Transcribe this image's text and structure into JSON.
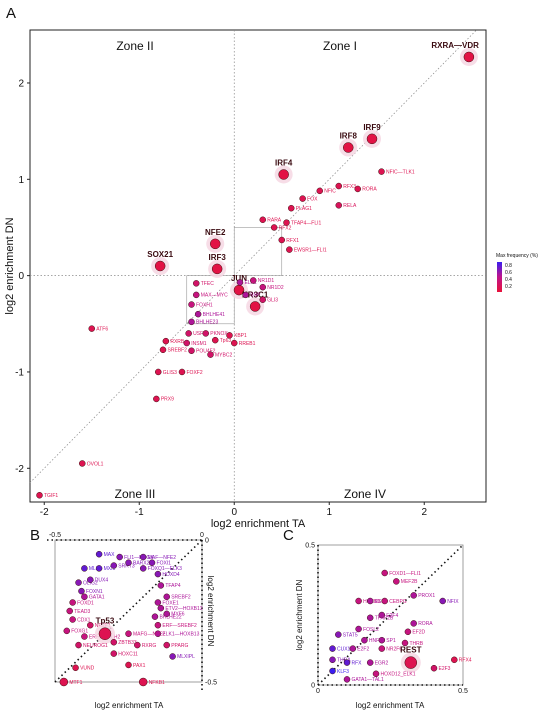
{
  "chart_data": [
    {
      "panel": "A",
      "type": "scatter",
      "xlabel": "log2 enrichment TA",
      "ylabel": "log2 enrichment DN",
      "xlim": [
        -2.15,
        2.65
      ],
      "ylim": [
        -2.35,
        2.55
      ],
      "xticks": [
        "-2",
        "-1",
        "0",
        "1",
        "2"
      ],
      "yticks": [
        "2",
        "1",
        "0",
        "-1",
        "-2"
      ],
      "zones": [
        "Zone I",
        "Zone II",
        "Zone III",
        "Zone IV"
      ],
      "legend": {
        "title": "Max frequency (%)",
        "ticks": [
          "0.8",
          "0.6",
          "0.4",
          "0.2"
        ],
        "low_color": "#e8123a",
        "mid_color": "#c0148a",
        "high_color": "#3a1ef0",
        "placement": "right"
      },
      "points": [
        {
          "label": "RXRA—VDR",
          "x": 2.47,
          "y": 2.27,
          "f": 0.15,
          "s": 5,
          "big": true
        },
        {
          "label": "IRF9",
          "x": 1.45,
          "y": 1.42,
          "f": 0.15,
          "s": 5,
          "big": true
        },
        {
          "label": "IRF8",
          "x": 1.2,
          "y": 1.33,
          "f": 0.15,
          "s": 5,
          "big": true
        },
        {
          "label": "NFIC—TLK1",
          "x": 1.55,
          "y": 1.08,
          "f": 0.2,
          "s": 3
        },
        {
          "label": "IRF4",
          "x": 0.52,
          "y": 1.05,
          "f": 0.15,
          "s": 5,
          "big": true
        },
        {
          "label": "RFX3",
          "x": 1.1,
          "y": 0.93,
          "f": 0.2,
          "s": 3
        },
        {
          "label": "RORA",
          "x": 1.3,
          "y": 0.9,
          "f": 0.2,
          "s": 3
        },
        {
          "label": "NFIC",
          "x": 0.9,
          "y": 0.88,
          "f": 0.2,
          "s": 3
        },
        {
          "label": "FOX",
          "x": 0.72,
          "y": 0.8,
          "f": 0.2,
          "s": 3
        },
        {
          "label": "RELA",
          "x": 1.1,
          "y": 0.73,
          "f": 0.25,
          "s": 3
        },
        {
          "label": "PLAG1",
          "x": 0.6,
          "y": 0.7,
          "f": 0.2,
          "s": 3
        },
        {
          "label": "TFAP4—FLI1",
          "x": 0.55,
          "y": 0.55,
          "f": 0.2,
          "s": 3
        },
        {
          "label": "RARA",
          "x": 0.3,
          "y": 0.58,
          "f": 0.2,
          "s": 3
        },
        {
          "label": "RFX2",
          "x": 0.42,
          "y": 0.5,
          "f": 0.2,
          "s": 3
        },
        {
          "label": "RFX1",
          "x": 0.5,
          "y": 0.37,
          "f": 0.2,
          "s": 3
        },
        {
          "label": "EWSR1—FLI1",
          "x": 0.58,
          "y": 0.27,
          "f": 0.2,
          "s": 3
        },
        {
          "label": "NFE2",
          "x": -0.2,
          "y": 0.33,
          "f": 0.15,
          "s": 5,
          "big": true
        },
        {
          "label": "SOX21",
          "x": -0.78,
          "y": 0.1,
          "f": 0.15,
          "s": 5,
          "big": true
        },
        {
          "label": "IRF3",
          "x": -0.18,
          "y": 0.07,
          "f": 0.15,
          "s": 5,
          "big": true
        },
        {
          "label": "TFEC",
          "x": -0.4,
          "y": -0.08,
          "f": 0.3,
          "s": 3
        },
        {
          "label": "MAX—MYC",
          "x": -0.4,
          "y": -0.2,
          "f": 0.4,
          "s": 3
        },
        {
          "label": "FOXH1",
          "x": -0.45,
          "y": -0.3,
          "f": 0.4,
          "s": 3
        },
        {
          "label": "BHLHE41",
          "x": -0.38,
          "y": -0.4,
          "f": 0.5,
          "s": 3
        },
        {
          "label": "BHLHE23",
          "x": -0.45,
          "y": -0.48,
          "f": 0.5,
          "s": 3
        },
        {
          "label": "USF2",
          "x": -0.48,
          "y": -0.6,
          "f": 0.3,
          "s": 3
        },
        {
          "label": "PKNOX",
          "x": -0.3,
          "y": -0.6,
          "f": 0.3,
          "s": 3
        },
        {
          "label": "RXRB",
          "x": -0.72,
          "y": -0.68,
          "f": 0.2,
          "s": 3
        },
        {
          "label": "INSM1",
          "x": -0.5,
          "y": -0.7,
          "f": 0.3,
          "s": 3
        },
        {
          "label": "SREBF2",
          "x": -0.75,
          "y": -0.77,
          "f": 0.2,
          "s": 3
        },
        {
          "label": "POU4F2",
          "x": -0.45,
          "y": -0.78,
          "f": 0.3,
          "s": 3
        },
        {
          "label": "MYBC2",
          "x": -0.25,
          "y": -0.82,
          "f": 0.3,
          "s": 3
        },
        {
          "label": "Tp63",
          "x": -0.2,
          "y": -0.67,
          "f": 0.2,
          "s": 3
        },
        {
          "label": "XBP1",
          "x": -0.05,
          "y": -0.62,
          "f": 0.2,
          "s": 3
        },
        {
          "label": "RREB1",
          "x": 0.0,
          "y": -0.7,
          "f": 0.2,
          "s": 3
        },
        {
          "label": "ATF6",
          "x": -1.5,
          "y": -0.55,
          "f": 0.2,
          "s": 3
        },
        {
          "label": "GLIS3",
          "x": -0.8,
          "y": -1.0,
          "f": 0.2,
          "s": 3
        },
        {
          "label": "FOXF2",
          "x": -0.55,
          "y": -1.0,
          "f": 0.2,
          "s": 3
        },
        {
          "label": "PRX9",
          "x": -0.82,
          "y": -1.28,
          "f": 0.2,
          "s": 3
        },
        {
          "label": "OVOL1",
          "x": -1.6,
          "y": -1.95,
          "f": 0.2,
          "s": 3
        },
        {
          "label": "TGIF1",
          "x": -2.05,
          "y": -2.28,
          "f": 0.2,
          "s": 3
        },
        {
          "label": "JUN",
          "x": 0.05,
          "y": -0.15,
          "f": 0.15,
          "s": 5,
          "big": true
        },
        {
          "label": "NR3C1",
          "x": 0.22,
          "y": -0.32,
          "f": 0.15,
          "s": 5,
          "big": true
        },
        {
          "label": "ELK1",
          "x": 0.06,
          "y": -0.07,
          "f": 0.5,
          "s": 3
        },
        {
          "label": "NR1D1",
          "x": 0.2,
          "y": -0.05,
          "f": 0.4,
          "s": 3
        },
        {
          "label": "NR1D2",
          "x": 0.3,
          "y": -0.12,
          "f": 0.4,
          "s": 3
        },
        {
          "label": "SNP",
          "x": 0.12,
          "y": -0.2,
          "f": 0.5,
          "s": 3
        },
        {
          "label": "GLI3",
          "x": 0.3,
          "y": -0.25,
          "f": 0.3,
          "s": 3
        }
      ]
    },
    {
      "panel": "B",
      "type": "scatter",
      "xlabel": "log2 enrichment TA",
      "ylabel": "log2 enrichment DN",
      "xlim": [
        -0.5,
        0
      ],
      "ylim": [
        -0.5,
        0
      ],
      "xticks": [
        "-0.5",
        "0"
      ],
      "yticks": [
        "0",
        "-0.5"
      ],
      "points": [
        {
          "label": "MAX",
          "x": -0.35,
          "y": -0.05,
          "f": 0.7,
          "s": 3
        },
        {
          "label": "FLI1—DRGX",
          "x": -0.28,
          "y": -0.06,
          "f": 0.6,
          "s": 3
        },
        {
          "label": "MAF—NFE2",
          "x": -0.2,
          "y": -0.06,
          "f": 0.6,
          "s": 3
        },
        {
          "label": "MLX",
          "x": -0.4,
          "y": -0.1,
          "f": 0.7,
          "s": 3
        },
        {
          "label": "MXI1",
          "x": -0.35,
          "y": -0.1,
          "f": 0.7,
          "s": 3
        },
        {
          "label": "SRRT3",
          "x": -0.3,
          "y": -0.09,
          "f": 0.6,
          "s": 3
        },
        {
          "label": "BARX2",
          "x": -0.25,
          "y": -0.08,
          "f": 0.6,
          "s": 3
        },
        {
          "label": "FOXQ1—ELK3",
          "x": -0.2,
          "y": -0.1,
          "f": 0.6,
          "s": 3
        },
        {
          "label": "FOXI1",
          "x": -0.17,
          "y": -0.08,
          "f": 0.6,
          "s": 3
        },
        {
          "label": "HOXD4",
          "x": -0.15,
          "y": -0.12,
          "f": 0.6,
          "s": 3
        },
        {
          "label": "OLIG2",
          "x": -0.42,
          "y": -0.15,
          "f": 0.6,
          "s": 3
        },
        {
          "label": "DUX4",
          "x": -0.38,
          "y": -0.14,
          "f": 0.6,
          "s": 3
        },
        {
          "label": "TFAP4",
          "x": -0.14,
          "y": -0.16,
          "f": 0.5,
          "s": 3
        },
        {
          "label": "FOXN1",
          "x": -0.41,
          "y": -0.18,
          "f": 0.6,
          "s": 3
        },
        {
          "label": "SREBF2",
          "x": -0.12,
          "y": -0.2,
          "f": 0.5,
          "s": 3
        },
        {
          "label": "GATA1",
          "x": -0.4,
          "y": -0.2,
          "f": 0.5,
          "s": 3
        },
        {
          "label": "FOXE1",
          "x": -0.15,
          "y": -0.22,
          "f": 0.5,
          "s": 3
        },
        {
          "label": "FOXD1",
          "x": -0.44,
          "y": -0.22,
          "f": 0.4,
          "s": 3
        },
        {
          "label": "ETV2—HOXB13",
          "x": -0.14,
          "y": -0.24,
          "f": 0.5,
          "s": 3
        },
        {
          "label": "TEAD3",
          "x": -0.45,
          "y": -0.25,
          "f": 0.4,
          "s": 3
        },
        {
          "label": "MYF6",
          "x": -0.12,
          "y": -0.26,
          "f": 0.5,
          "s": 3
        },
        {
          "label": "CDX1",
          "x": -0.44,
          "y": -0.28,
          "f": 0.4,
          "s": 3
        },
        {
          "label": "BHLHE22",
          "x": -0.16,
          "y": -0.27,
          "f": 0.5,
          "s": 3
        },
        {
          "label": "NR2F1",
          "x": -0.38,
          "y": -0.3,
          "f": 0.3,
          "s": 3
        },
        {
          "label": "ERF—SREBF2",
          "x": -0.15,
          "y": -0.3,
          "f": 0.4,
          "s": 3
        },
        {
          "label": "FOXG1",
          "x": -0.46,
          "y": -0.32,
          "f": 0.4,
          "s": 3
        },
        {
          "label": "ERF—NHLH2",
          "x": -0.4,
          "y": -0.34,
          "f": 0.4,
          "s": 3
        },
        {
          "label": "ELK1—HOXB13",
          "x": -0.15,
          "y": -0.33,
          "f": 0.5,
          "s": 3
        },
        {
          "label": "Tp53",
          "x": -0.33,
          "y": -0.33,
          "f": 0.2,
          "s": 6,
          "big": true
        },
        {
          "label": "MAFG—NFE2",
          "x": -0.25,
          "y": -0.33,
          "f": 0.4,
          "s": 3
        },
        {
          "label": "NEUROG1",
          "x": -0.42,
          "y": -0.37,
          "f": 0.3,
          "s": 3
        },
        {
          "label": "PPARG",
          "x": -0.12,
          "y": -0.37,
          "f": 0.3,
          "s": 3
        },
        {
          "label": "ZBTB33",
          "x": -0.3,
          "y": -0.36,
          "f": 0.3,
          "s": 3
        },
        {
          "label": "RXRG",
          "x": -0.22,
          "y": -0.37,
          "f": 0.3,
          "s": 3
        },
        {
          "label": "MLXIPL",
          "x": -0.1,
          "y": -0.41,
          "f": 0.6,
          "s": 3
        },
        {
          "label": "HOXC11",
          "x": -0.3,
          "y": -0.4,
          "f": 0.3,
          "s": 3
        },
        {
          "label": "PAX1",
          "x": -0.25,
          "y": -0.44,
          "f": 0.2,
          "s": 3
        },
        {
          "label": "VUND",
          "x": -0.43,
          "y": -0.45,
          "f": 0.2,
          "s": 3
        },
        {
          "label": "MTF1",
          "x": -0.47,
          "y": -0.5,
          "f": 0.2,
          "s": 4
        },
        {
          "label": "NFKB1",
          "x": -0.2,
          "y": -0.5,
          "f": 0.2,
          "s": 4
        }
      ]
    },
    {
      "panel": "C",
      "type": "scatter",
      "xlabel": "log2 enrichment TA",
      "ylabel": "log2 enrichment DN",
      "xlim": [
        0,
        0.5
      ],
      "ylim": [
        0,
        0.5
      ],
      "xticks": [
        "0",
        "0.5"
      ],
      "yticks": [
        "0.5",
        "0"
      ],
      "points": [
        {
          "label": "FOXD1—FLI1",
          "x": 0.23,
          "y": 0.4,
          "f": 0.4,
          "s": 3
        },
        {
          "label": "MEF2B",
          "x": 0.27,
          "y": 0.37,
          "f": 0.4,
          "s": 3
        },
        {
          "label": "PROX1",
          "x": 0.33,
          "y": 0.32,
          "f": 0.5,
          "s": 3
        },
        {
          "label": "NFIX",
          "x": 0.43,
          "y": 0.3,
          "f": 0.6,
          "s": 3
        },
        {
          "label": "HOXB9",
          "x": 0.14,
          "y": 0.3,
          "f": 0.4,
          "s": 3
        },
        {
          "label": "ESR1",
          "x": 0.18,
          "y": 0.3,
          "f": 0.5,
          "s": 3
        },
        {
          "label": "CEBPG",
          "x": 0.23,
          "y": 0.3,
          "f": 0.4,
          "s": 3
        },
        {
          "label": "E2F4",
          "x": 0.22,
          "y": 0.25,
          "f": 0.5,
          "s": 3
        },
        {
          "label": "TFAP2B",
          "x": 0.18,
          "y": 0.24,
          "f": 0.5,
          "s": 3
        },
        {
          "label": "RORA",
          "x": 0.33,
          "y": 0.22,
          "f": 0.5,
          "s": 3
        },
        {
          "label": "FOSL2",
          "x": 0.14,
          "y": 0.2,
          "f": 0.5,
          "s": 3
        },
        {
          "label": "EF2D",
          "x": 0.31,
          "y": 0.19,
          "f": 0.4,
          "s": 3
        },
        {
          "label": "STAT5",
          "x": 0.07,
          "y": 0.18,
          "f": 0.6,
          "s": 3
        },
        {
          "label": "HNF1B",
          "x": 0.16,
          "y": 0.16,
          "f": 0.5,
          "s": 3
        },
        {
          "label": "SP1",
          "x": 0.22,
          "y": 0.16,
          "f": 0.5,
          "s": 3
        },
        {
          "label": "THRB",
          "x": 0.3,
          "y": 0.15,
          "f": 0.4,
          "s": 3
        },
        {
          "label": "CUX1",
          "x": 0.05,
          "y": 0.13,
          "f": 0.7,
          "s": 3
        },
        {
          "label": "E2F2",
          "x": 0.12,
          "y": 0.13,
          "f": 0.5,
          "s": 3
        },
        {
          "label": "NR2F6",
          "x": 0.22,
          "y": 0.13,
          "f": 0.4,
          "s": 3
        },
        {
          "label": "THRA",
          "x": 0.05,
          "y": 0.09,
          "f": 0.6,
          "s": 3
        },
        {
          "label": "RFX",
          "x": 0.1,
          "y": 0.08,
          "f": 0.7,
          "s": 3
        },
        {
          "label": "EGR2",
          "x": 0.18,
          "y": 0.08,
          "f": 0.5,
          "s": 3
        },
        {
          "label": "REST",
          "x": 0.32,
          "y": 0.08,
          "f": 0.2,
          "s": 6,
          "big": true
        },
        {
          "label": "RFX4",
          "x": 0.47,
          "y": 0.09,
          "f": 0.2,
          "s": 3
        },
        {
          "label": "KLF3",
          "x": 0.05,
          "y": 0.05,
          "f": 0.8,
          "s": 3
        },
        {
          "label": "HOXD12_ELK1",
          "x": 0.2,
          "y": 0.04,
          "f": 0.4,
          "s": 3
        },
        {
          "label": "E2F3",
          "x": 0.4,
          "y": 0.06,
          "f": 0.3,
          "s": 3
        },
        {
          "label": "GATA1—TAL1",
          "x": 0.1,
          "y": 0.02,
          "f": 0.5,
          "s": 3
        }
      ]
    }
  ]
}
